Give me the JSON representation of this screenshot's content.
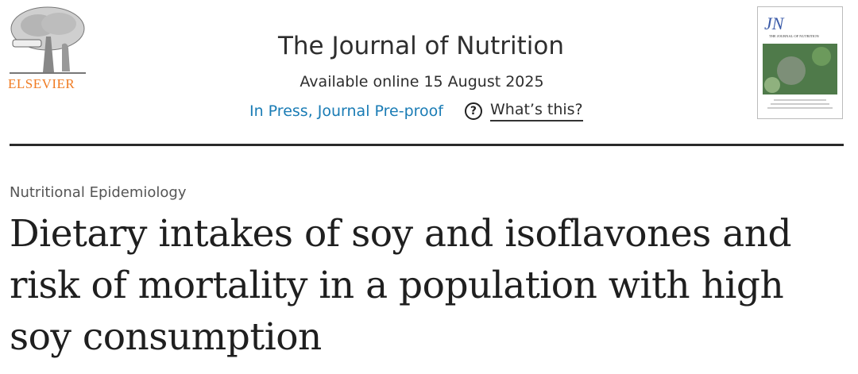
{
  "publisher": {
    "name": "ELSEVIER",
    "logo_icon": "elsevier-tree-logo",
    "color": "#f07b22"
  },
  "journal": {
    "title": "The Journal of Nutrition",
    "availability": "Available online 15 August 2025",
    "status_link": "In Press, Journal Pre-proof",
    "help_icon": "question-circle-icon",
    "help_link": "What’s this?",
    "link_color": "#1a7cb5",
    "cover": {
      "abbrev": "JN",
      "name": "THE JOURNAL OF NUTRITION"
    }
  },
  "article": {
    "section": "Nutritional Epidemiology",
    "title": "Dietary intakes of soy and isoflavones and risk of mortality in a population with high soy consumption"
  }
}
